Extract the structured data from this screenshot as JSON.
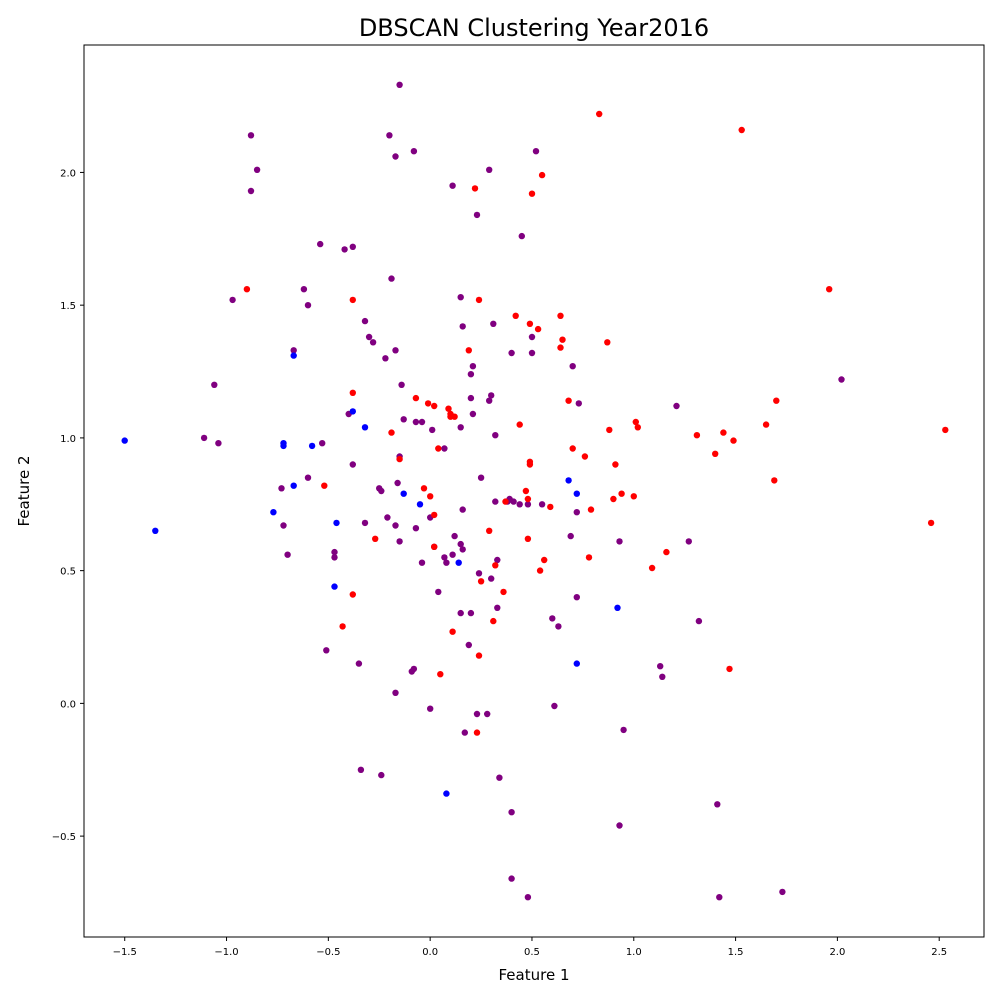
{
  "chart_data": {
    "type": "scatter",
    "title": "DBSCAN Clustering Year2016",
    "xlabel": "Feature 1",
    "ylabel": "Feature 2",
    "xlim": [
      -1.7,
      2.72
    ],
    "ylim": [
      -0.88,
      2.48
    ],
    "grid": false,
    "x_ticks": [
      -1.5,
      -1.0,
      -0.5,
      0.0,
      0.5,
      1.0,
      1.5,
      2.0,
      2.5
    ],
    "x_tick_labels": [
      "−1.5",
      "−1.0",
      "−0.5",
      "0.0",
      "0.5",
      "1.0",
      "1.5",
      "2.0",
      "2.5"
    ],
    "y_ticks": [
      -0.5,
      0.0,
      0.5,
      1.0,
      1.5,
      2.0
    ],
    "y_tick_labels": [
      "−0.5",
      "0.0",
      "0.5",
      "1.0",
      "1.5",
      "2.0"
    ],
    "series": [
      {
        "name": "cluster-purple",
        "color": "#800080",
        "points": [
          [
            -0.15,
            2.33
          ],
          [
            -0.88,
            2.14
          ],
          [
            -0.85,
            2.01
          ],
          [
            -0.88,
            1.93
          ],
          [
            -0.2,
            2.14
          ],
          [
            -0.17,
            2.06
          ],
          [
            -0.08,
            2.08
          ],
          [
            0.11,
            1.95
          ],
          [
            0.29,
            2.01
          ],
          [
            0.52,
            2.08
          ],
          [
            0.23,
            1.84
          ],
          [
            0.45,
            1.76
          ],
          [
            -0.54,
            1.73
          ],
          [
            -0.42,
            1.71
          ],
          [
            -0.38,
            1.72
          ],
          [
            -0.19,
            1.6
          ],
          [
            -0.97,
            1.52
          ],
          [
            -0.62,
            1.56
          ],
          [
            -0.6,
            1.5
          ],
          [
            0.15,
            1.53
          ],
          [
            -0.32,
            1.44
          ],
          [
            -0.3,
            1.38
          ],
          [
            -0.28,
            1.36
          ],
          [
            -0.17,
            1.33
          ],
          [
            -0.22,
            1.3
          ],
          [
            -0.67,
            1.33
          ],
          [
            0.16,
            1.42
          ],
          [
            0.31,
            1.43
          ],
          [
            0.4,
            1.32
          ],
          [
            0.5,
            1.38
          ],
          [
            0.5,
            1.32
          ],
          [
            0.7,
            1.27
          ],
          [
            0.2,
            1.24
          ],
          [
            0.21,
            1.27
          ],
          [
            -1.06,
            1.2
          ],
          [
            -0.14,
            1.2
          ],
          [
            0.2,
            1.15
          ],
          [
            0.29,
            1.14
          ],
          [
            0.3,
            1.16
          ],
          [
            0.21,
            1.09
          ],
          [
            0.73,
            1.13
          ],
          [
            1.21,
            1.12
          ],
          [
            2.02,
            1.22
          ],
          [
            -0.4,
            1.09
          ],
          [
            -0.13,
            1.07
          ],
          [
            -0.07,
            1.06
          ],
          [
            -0.04,
            1.06
          ],
          [
            0.01,
            1.03
          ],
          [
            0.15,
            1.04
          ],
          [
            0.32,
            1.01
          ],
          [
            -1.11,
            1.0
          ],
          [
            -1.04,
            0.98
          ],
          [
            -0.53,
            0.98
          ],
          [
            -0.38,
            0.9
          ],
          [
            -0.6,
            0.85
          ],
          [
            -0.15,
            0.93
          ],
          [
            0.07,
            0.96
          ],
          [
            0.25,
            0.85
          ],
          [
            -0.73,
            0.81
          ],
          [
            -0.25,
            0.81
          ],
          [
            -0.24,
            0.8
          ],
          [
            -0.16,
            0.83
          ],
          [
            0.32,
            0.76
          ],
          [
            0.38,
            0.76
          ],
          [
            0.39,
            0.77
          ],
          [
            0.41,
            0.76
          ],
          [
            0.44,
            0.75
          ],
          [
            0.48,
            0.75
          ],
          [
            0.55,
            0.75
          ],
          [
            0.72,
            0.72
          ],
          [
            -0.72,
            0.67
          ],
          [
            -0.21,
            0.7
          ],
          [
            -0.32,
            0.68
          ],
          [
            -0.17,
            0.67
          ],
          [
            -0.07,
            0.66
          ],
          [
            0.0,
            0.7
          ],
          [
            0.16,
            0.73
          ],
          [
            0.12,
            0.63
          ],
          [
            0.69,
            0.63
          ],
          [
            0.93,
            0.61
          ],
          [
            1.27,
            0.61
          ],
          [
            -0.7,
            0.56
          ],
          [
            -0.47,
            0.57
          ],
          [
            -0.47,
            0.55
          ],
          [
            -0.15,
            0.61
          ],
          [
            0.02,
            0.59
          ],
          [
            0.07,
            0.55
          ],
          [
            0.08,
            0.53
          ],
          [
            0.11,
            0.56
          ],
          [
            0.15,
            0.6
          ],
          [
            0.16,
            0.58
          ],
          [
            0.33,
            0.54
          ],
          [
            -0.04,
            0.53
          ],
          [
            0.24,
            0.49
          ],
          [
            0.3,
            0.47
          ],
          [
            0.04,
            0.42
          ],
          [
            0.72,
            0.4
          ],
          [
            0.15,
            0.34
          ],
          [
            0.2,
            0.34
          ],
          [
            0.33,
            0.36
          ],
          [
            0.6,
            0.32
          ],
          [
            0.63,
            0.29
          ],
          [
            1.32,
            0.31
          ],
          [
            -0.51,
            0.2
          ],
          [
            0.19,
            0.22
          ],
          [
            -0.35,
            0.15
          ],
          [
            -0.09,
            0.12
          ],
          [
            -0.08,
            0.13
          ],
          [
            1.13,
            0.14
          ],
          [
            1.14,
            0.1
          ],
          [
            -0.17,
            0.04
          ],
          [
            0.0,
            -0.02
          ],
          [
            0.23,
            -0.04
          ],
          [
            0.28,
            -0.04
          ],
          [
            0.61,
            -0.01
          ],
          [
            0.17,
            -0.11
          ],
          [
            0.95,
            -0.1
          ],
          [
            -0.34,
            -0.25
          ],
          [
            -0.24,
            -0.27
          ],
          [
            0.34,
            -0.28
          ],
          [
            0.4,
            -0.41
          ],
          [
            1.41,
            -0.38
          ],
          [
            0.93,
            -0.46
          ],
          [
            0.4,
            -0.66
          ],
          [
            0.48,
            -0.73
          ],
          [
            1.42,
            -0.73
          ],
          [
            1.73,
            -0.71
          ]
        ]
      },
      {
        "name": "cluster-red",
        "color": "#ff0000",
        "points": [
          [
            0.83,
            2.22
          ],
          [
            1.53,
            2.16
          ],
          [
            0.55,
            1.99
          ],
          [
            0.22,
            1.94
          ],
          [
            0.5,
            1.92
          ],
          [
            -0.9,
            1.56
          ],
          [
            1.96,
            1.56
          ],
          [
            -0.38,
            1.52
          ],
          [
            0.24,
            1.52
          ],
          [
            0.42,
            1.46
          ],
          [
            0.64,
            1.46
          ],
          [
            0.53,
            1.41
          ],
          [
            0.49,
            1.43
          ],
          [
            0.65,
            1.37
          ],
          [
            0.64,
            1.34
          ],
          [
            0.87,
            1.36
          ],
          [
            0.19,
            1.33
          ],
          [
            -0.38,
            1.17
          ],
          [
            -0.07,
            1.15
          ],
          [
            -0.01,
            1.13
          ],
          [
            0.02,
            1.12
          ],
          [
            0.09,
            1.11
          ],
          [
            0.1,
            1.09
          ],
          [
            0.1,
            1.08
          ],
          [
            0.12,
            1.08
          ],
          [
            0.68,
            1.14
          ],
          [
            1.7,
            1.14
          ],
          [
            1.01,
            1.06
          ],
          [
            1.02,
            1.04
          ],
          [
            1.65,
            1.05
          ],
          [
            0.44,
            1.05
          ],
          [
            -0.19,
            1.02
          ],
          [
            0.88,
            1.03
          ],
          [
            1.31,
            1.01
          ],
          [
            1.44,
            1.02
          ],
          [
            1.49,
            0.99
          ],
          [
            2.53,
            1.03
          ],
          [
            0.04,
            0.96
          ],
          [
            0.7,
            0.96
          ],
          [
            -0.15,
            0.92
          ],
          [
            0.49,
            0.91
          ],
          [
            0.49,
            0.9
          ],
          [
            0.76,
            0.93
          ],
          [
            1.4,
            0.94
          ],
          [
            0.91,
            0.9
          ],
          [
            1.69,
            0.84
          ],
          [
            -0.52,
            0.82
          ],
          [
            -0.03,
            0.81
          ],
          [
            0.0,
            0.78
          ],
          [
            0.47,
            0.8
          ],
          [
            0.48,
            0.77
          ],
          [
            0.94,
            0.79
          ],
          [
            1.0,
            0.78
          ],
          [
            0.9,
            0.77
          ],
          [
            0.37,
            0.76
          ],
          [
            0.59,
            0.74
          ],
          [
            0.79,
            0.73
          ],
          [
            2.46,
            0.68
          ],
          [
            0.29,
            0.65
          ],
          [
            -0.27,
            0.62
          ],
          [
            0.48,
            0.62
          ],
          [
            0.02,
            0.59
          ],
          [
            0.78,
            0.55
          ],
          [
            0.56,
            0.54
          ],
          [
            1.16,
            0.57
          ],
          [
            0.32,
            0.52
          ],
          [
            0.54,
            0.5
          ],
          [
            1.09,
            0.51
          ],
          [
            0.25,
            0.46
          ],
          [
            0.36,
            0.42
          ],
          [
            -0.38,
            0.41
          ],
          [
            0.31,
            0.31
          ],
          [
            -0.43,
            0.29
          ],
          [
            0.11,
            0.27
          ],
          [
            0.24,
            0.18
          ],
          [
            1.47,
            0.13
          ],
          [
            0.05,
            0.11
          ],
          [
            0.23,
            -0.11
          ],
          [
            0.02,
            0.71
          ]
        ]
      },
      {
        "name": "cluster-blue",
        "color": "#0000ff",
        "points": [
          [
            -1.5,
            0.99
          ],
          [
            -1.35,
            0.65
          ],
          [
            -0.67,
            1.31
          ],
          [
            -0.38,
            1.1
          ],
          [
            -0.32,
            1.04
          ],
          [
            -0.72,
            0.98
          ],
          [
            -0.72,
            0.97
          ],
          [
            -0.58,
            0.97
          ],
          [
            -0.67,
            0.82
          ],
          [
            -0.77,
            0.72
          ],
          [
            -0.46,
            0.68
          ],
          [
            -0.47,
            0.44
          ],
          [
            -0.13,
            0.79
          ],
          [
            -0.05,
            0.75
          ],
          [
            0.14,
            0.53
          ],
          [
            0.68,
            0.84
          ],
          [
            0.72,
            0.79
          ],
          [
            0.92,
            0.36
          ],
          [
            0.72,
            0.15
          ],
          [
            0.08,
            -0.34
          ]
        ]
      }
    ]
  }
}
